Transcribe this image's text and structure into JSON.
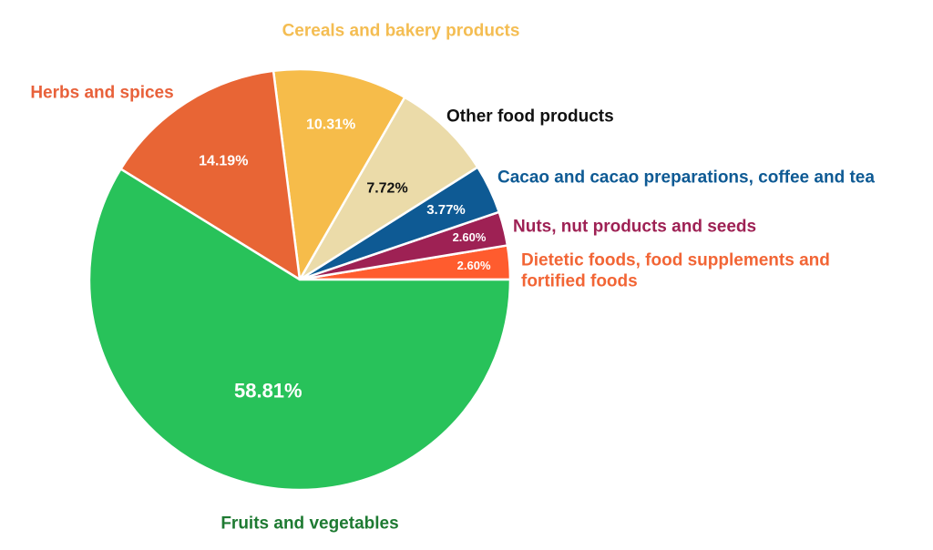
{
  "chart_data": {
    "type": "pie",
    "title": "",
    "slices": [
      {
        "label": "Dietetic foods, food supplements and",
        "label2": "fortified foods",
        "value": 2.6,
        "value_label": "2.60%",
        "color": "#FF5C2E",
        "label_color": "#F26535",
        "value_color": "#ffffff"
      },
      {
        "label": "Nuts, nut products and seeds",
        "label2": "",
        "value": 2.6,
        "value_label": "2.60%",
        "color": "#9E2154",
        "label_color": "#9E2154",
        "value_color": "#ffffff"
      },
      {
        "label": "Cacao and cacao preparations, coffee and tea",
        "label2": "",
        "value": 3.77,
        "value_label": "3.77%",
        "color": "#0E5A94",
        "label_color": "#0E5A94",
        "value_color": "#ffffff"
      },
      {
        "label": "Other food products",
        "label2": "",
        "value": 7.72,
        "value_label": "7.72%",
        "color": "#EBDBA9",
        "label_color": "#111111",
        "value_color": "#111111"
      },
      {
        "label": "Cereals and bakery products",
        "label2": "",
        "value": 10.31,
        "value_label": "10.31%",
        "color": "#F6BC4A",
        "label_color": "#F4BD52",
        "value_color": "#ffffff"
      },
      {
        "label": "Herbs and spices",
        "label2": "",
        "value": 14.19,
        "value_label": "14.19%",
        "color": "#E86535",
        "label_color": "#E8613A",
        "value_color": "#ffffff"
      },
      {
        "label": "Fruits and vegetables",
        "label2": "",
        "value": 58.81,
        "value_label": "58.81%",
        "color": "#28C25A",
        "label_color": "#1E7A32",
        "value_color": "#ffffff"
      }
    ]
  }
}
